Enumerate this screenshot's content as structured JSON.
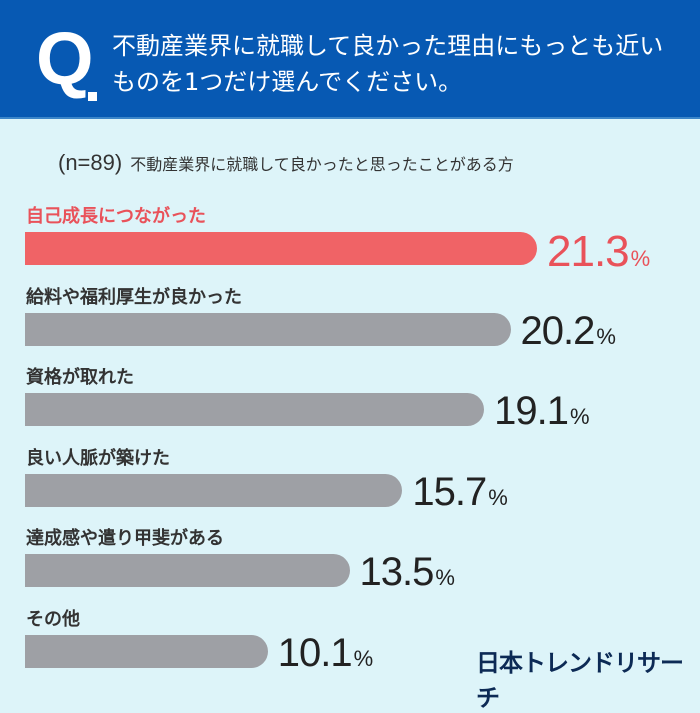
{
  "header": {
    "q_mark": "Q",
    "question": "不動産業界に就職して良かった理由にもっとも近いものを1つだけ選んでください。",
    "color": "#0759b3"
  },
  "subtitle": {
    "n": "(n=89)",
    "text": "不動産業界に就職して良かったと思ったことがある方"
  },
  "logo": "日本トレンドリサーチ",
  "chart_data": {
    "type": "bar",
    "orientation": "horizontal",
    "categories": [
      "自己成長につながった",
      "給料や福利厚生が良かった",
      "資格が取れた",
      "良い人脈が築けた",
      "達成感や遣り甲斐がある",
      "その他"
    ],
    "values": [
      21.3,
      20.2,
      19.1,
      15.7,
      13.5,
      10.1
    ],
    "value_labels": [
      "21.3",
      "20.2",
      "19.1",
      "15.7",
      "13.5",
      "10.1"
    ],
    "unit": "%",
    "highlight_index": 0,
    "colors": {
      "highlight": "#f06366",
      "default": "#9ea0a5",
      "highlight_text": "#e9525a"
    }
  }
}
